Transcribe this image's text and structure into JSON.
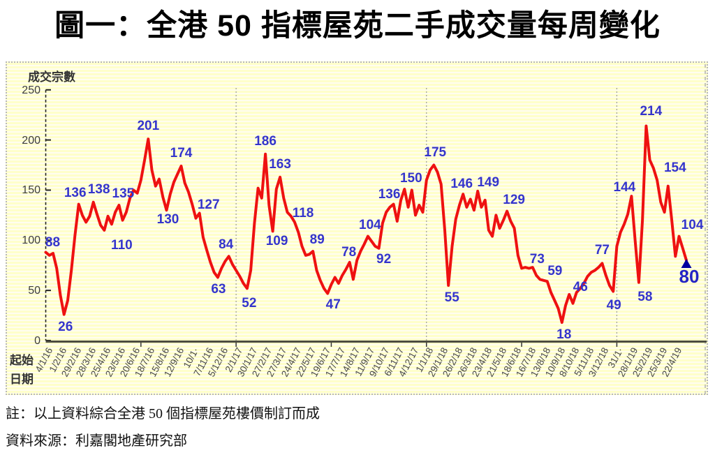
{
  "title": "圖一：全港 50 指標屋苑二手成交量每周變化",
  "notes": [
    "註：以上資料綜合全港 50 個指標屋苑樓價制訂而成",
    "資料來源：利嘉閣地產研究部"
  ],
  "chart_data": {
    "type": "line",
    "title": "圖一：全港 50 指標屋苑二手成交量每周變化",
    "ylabel": "成交宗數",
    "x_axis_header": [
      "起始",
      "日期"
    ],
    "ylim": [
      0,
      250
    ],
    "yticks": [
      0,
      50,
      100,
      150,
      200,
      250
    ],
    "grid": "horizontal-stripes, dashed year separators",
    "legend": "none",
    "x_tick_interval_weeks": 4,
    "x_tick_labels": [
      "4/1/16",
      "1/2/16",
      "29/2/16",
      "28/3/16",
      "25/4/16",
      "23/5/16",
      "20/6/16",
      "18/7/16",
      "15/8/16",
      "12/9/16",
      "10/1·",
      "7/11/16",
      "5/12/16",
      "2/1/17",
      "30/1/17",
      "27/2/17",
      "27/3/17",
      "24/4/17",
      "22/5/17",
      "19/6/17",
      "17/7/17",
      "14/8/17",
      "11/9/17",
      "9/10/17",
      "6/11/17",
      "4/12/17",
      "1/1/18",
      "29/1/18",
      "26/2/18",
      "26/3/18",
      "23/4/18",
      "21/5/18",
      "18/6/18",
      "16/7/18",
      "13/8/18",
      "10/9/18",
      "8/10/18",
      "5/11/18",
      "3/12/18",
      "31/1·",
      "28/1/19",
      "25/2/19",
      "25/3/19",
      "22/4/19"
    ],
    "year_gridline_weeks": [
      52,
      104,
      156
    ],
    "axis_tick_weeks": [
      26,
      52,
      78,
      104,
      130,
      156
    ],
    "series": [
      {
        "name": "成交宗數",
        "color": "#ee1111",
        "values": [
          88,
          85,
          87,
          72,
          45,
          26,
          40,
          70,
          105,
          136,
          125,
          118,
          124,
          138,
          126,
          115,
          110,
          124,
          116,
          128,
          135,
          120,
          128,
          142,
          150,
          147,
          160,
          180,
          201,
          170,
          154,
          161,
          143,
          130,
          146,
          158,
          166,
          174,
          157,
          148,
          136,
          122,
          127,
          103,
          90,
          78,
          68,
          63,
          72,
          79,
          84,
          76,
          70,
          64,
          57,
          52,
          70,
          117,
          152,
          142,
          186,
          135,
          109,
          151,
          163,
          142,
          128,
          124,
          118,
          108,
          94,
          85,
          86,
          89,
          70,
          60,
          52,
          47,
          56,
          63,
          57,
          65,
          71,
          78,
          61,
          80,
          89,
          96,
          104,
          99,
          94,
          92,
          117,
          128,
          133,
          136,
          119,
          140,
          151,
          133,
          150,
          125,
          135,
          128,
          160,
          170,
          175,
          168,
          156,
          110,
          55,
          94,
          121,
          135,
          146,
          133,
          141,
          130,
          149,
          133,
          140,
          110,
          104,
          125,
          112,
          120,
          129,
          119,
          112,
          85,
          72,
          73,
          72,
          73,
          65,
          61,
          60,
          59,
          48,
          40,
          32,
          18,
          35,
          46,
          37,
          48,
          52,
          57,
          64,
          68,
          70,
          73,
          77,
          65,
          55,
          49,
          94,
          108,
          116,
          126,
          144,
          100,
          58,
          120,
          214,
          180,
          172,
          160,
          138,
          128,
          154,
          120,
          84,
          104,
          92,
          80
        ]
      }
    ],
    "labeled_points": [
      {
        "week": 0,
        "value": 88
      },
      {
        "week": 5,
        "value": 26
      },
      {
        "week": 9,
        "value": 136
      },
      {
        "week": 13,
        "value": 138
      },
      {
        "week": 16,
        "value": 110
      },
      {
        "week": 20,
        "value": 135
      },
      {
        "week": 28,
        "value": 201
      },
      {
        "week": 33,
        "value": 130
      },
      {
        "week": 37,
        "value": 174
      },
      {
        "week": 42,
        "value": 127
      },
      {
        "week": 47,
        "value": 63
      },
      {
        "week": 50,
        "value": 84
      },
      {
        "week": 55,
        "value": 52
      },
      {
        "week": 60,
        "value": 186
      },
      {
        "week": 62,
        "value": 109
      },
      {
        "week": 64,
        "value": 163
      },
      {
        "week": 68,
        "value": 118
      },
      {
        "week": 73,
        "value": 89
      },
      {
        "week": 77,
        "value": 47
      },
      {
        "week": 83,
        "value": 78
      },
      {
        "week": 88,
        "value": 104
      },
      {
        "week": 91,
        "value": 92
      },
      {
        "week": 95,
        "value": 136
      },
      {
        "week": 100,
        "value": 150
      },
      {
        "week": 106,
        "value": 175
      },
      {
        "week": 110,
        "value": 55
      },
      {
        "week": 114,
        "value": 146
      },
      {
        "week": 118,
        "value": 149
      },
      {
        "week": 126,
        "value": 129
      },
      {
        "week": 131,
        "value": 73
      },
      {
        "week": 137,
        "value": 59
      },
      {
        "week": 141,
        "value": 18
      },
      {
        "week": 143,
        "value": 46
      },
      {
        "week": 152,
        "value": 77
      },
      {
        "week": 155,
        "value": 49
      },
      {
        "week": 160,
        "value": 144
      },
      {
        "week": 162,
        "value": 58
      },
      {
        "week": 164,
        "value": 214
      },
      {
        "week": 170,
        "value": 154
      },
      {
        "week": 173,
        "value": 104
      },
      {
        "week": 175,
        "value": 80
      }
    ],
    "last_point_marker": {
      "week": 175,
      "value": 80,
      "shape": "triangle-up",
      "color": "#0000a0"
    },
    "colors": {
      "line": "#ee1111",
      "data_label": "#3434cc",
      "plot_background": "#ffffca",
      "stripe": "#fffdf0",
      "year_gridline": "#9a9a9a",
      "axis": "#4c4c40",
      "tick_text": "#3c3c3c"
    }
  }
}
